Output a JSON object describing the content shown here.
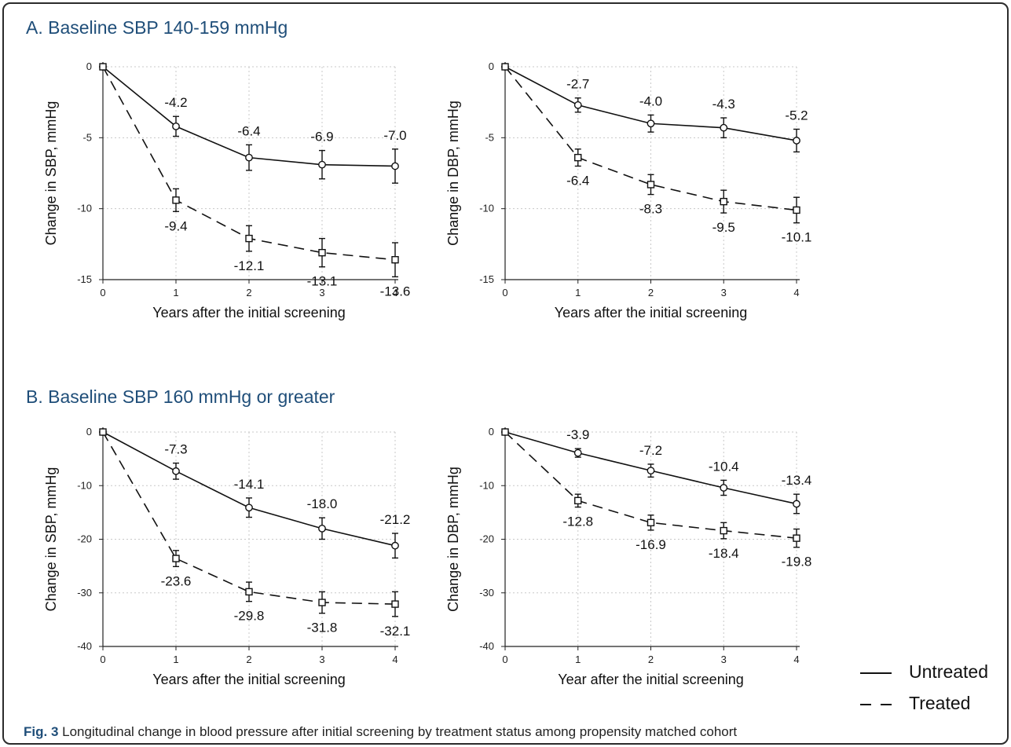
{
  "panels": {
    "a_title": "A. Baseline SBP 140-159 mmHg",
    "b_title": "B. Baseline SBP 160 mmHg or greater"
  },
  "caption": {
    "label": "Fig. 3",
    "text": " Longitudinal change in blood pressure after initial screening by treatment status among propensity matched cohort"
  },
  "legend": {
    "untreated": "Untreated",
    "treated": "Treated"
  },
  "colors": {
    "line": "#111111",
    "grid": "#c8c8c8",
    "title": "#1f4e79"
  },
  "chart_data": [
    {
      "type": "line",
      "panel": "A",
      "xlabel": "Years after the initial screening",
      "ylabel": "Change in SBP, mmHg",
      "x": [
        0,
        1,
        2,
        3,
        4
      ],
      "xlim": [
        0,
        4
      ],
      "ylim": [
        -15,
        0
      ],
      "yticks": [
        0,
        -5,
        -10,
        -15
      ],
      "grid": true,
      "series": [
        {
          "name": "Untreated",
          "values": [
            0,
            -4.2,
            -6.4,
            -6.9,
            -7.0
          ],
          "err": [
            0,
            0.7,
            0.9,
            1.0,
            1.2
          ],
          "labels": [
            "",
            "-4.2",
            "-6.4",
            "-6.9",
            "-7.0"
          ]
        },
        {
          "name": "Treated",
          "values": [
            0,
            -9.4,
            -12.1,
            -13.1,
            -13.6
          ],
          "err": [
            0,
            0.8,
            0.9,
            1.0,
            1.2
          ],
          "labels": [
            "",
            "-9.4",
            "-12.1",
            "-13.1",
            "-13.6"
          ]
        }
      ]
    },
    {
      "type": "line",
      "panel": "A",
      "xlabel": "Years after the initial screening",
      "ylabel": "Change in DBP, mmHg",
      "x": [
        0,
        1,
        2,
        3,
        4
      ],
      "xlim": [
        0,
        4
      ],
      "ylim": [
        -15,
        0
      ],
      "yticks": [
        0,
        -5,
        -10,
        -15
      ],
      "grid": true,
      "series": [
        {
          "name": "Untreated",
          "values": [
            0,
            -2.7,
            -4.0,
            -4.3,
            -5.2
          ],
          "err": [
            0,
            0.5,
            0.6,
            0.7,
            0.8
          ],
          "labels": [
            "",
            "-2.7",
            "-4.0",
            "-4.3",
            "-5.2"
          ]
        },
        {
          "name": "Treated",
          "values": [
            0,
            -6.4,
            -8.3,
            -9.5,
            -10.1
          ],
          "err": [
            0,
            0.6,
            0.7,
            0.8,
            0.9
          ],
          "labels": [
            "",
            "-6.4",
            "-8.3",
            "-9.5",
            "-10.1"
          ]
        }
      ]
    },
    {
      "type": "line",
      "panel": "B",
      "xlabel": "Years after the initial screening",
      "ylabel": "Change in SBP, mmHg",
      "x": [
        0,
        1,
        2,
        3,
        4
      ],
      "xlim": [
        0,
        4
      ],
      "ylim": [
        -40,
        0
      ],
      "yticks": [
        0,
        -10,
        -20,
        -30,
        -40
      ],
      "grid": true,
      "series": [
        {
          "name": "Untreated",
          "values": [
            0,
            -7.3,
            -14.1,
            -18.0,
            -21.2
          ],
          "err": [
            0,
            1.5,
            1.8,
            2.0,
            2.3
          ],
          "labels": [
            "",
            "-7.3",
            "-14.1",
            "-18.0",
            "-21.2"
          ]
        },
        {
          "name": "Treated",
          "values": [
            0,
            -23.6,
            -29.8,
            -31.8,
            -32.1
          ],
          "err": [
            0,
            1.5,
            1.8,
            2.0,
            2.3
          ],
          "labels": [
            "",
            "-23.6",
            "-29.8",
            "-31.8",
            "-32.1"
          ]
        }
      ]
    },
    {
      "type": "line",
      "panel": "B",
      "xlabel": "Year after the initial screening",
      "ylabel": "Change in DBP, mmHg",
      "x": [
        0,
        1,
        2,
        3,
        4
      ],
      "xlim": [
        0,
        4
      ],
      "ylim": [
        -40,
        0
      ],
      "yticks": [
        0,
        -10,
        -20,
        -30,
        -40
      ],
      "grid": true,
      "series": [
        {
          "name": "Untreated",
          "values": [
            0,
            -3.9,
            -7.2,
            -10.4,
            -13.4
          ],
          "err": [
            0,
            0.8,
            1.2,
            1.4,
            1.8
          ],
          "labels": [
            "",
            "-3.9",
            "-7.2",
            "-10.4",
            "-13.4"
          ]
        },
        {
          "name": "Treated",
          "values": [
            0,
            -12.8,
            -16.9,
            -18.4,
            -19.8
          ],
          "err": [
            0,
            1.2,
            1.4,
            1.5,
            1.7
          ],
          "labels": [
            "",
            "-12.8",
            "-16.9",
            "-18.4",
            "-19.8"
          ]
        }
      ]
    }
  ]
}
